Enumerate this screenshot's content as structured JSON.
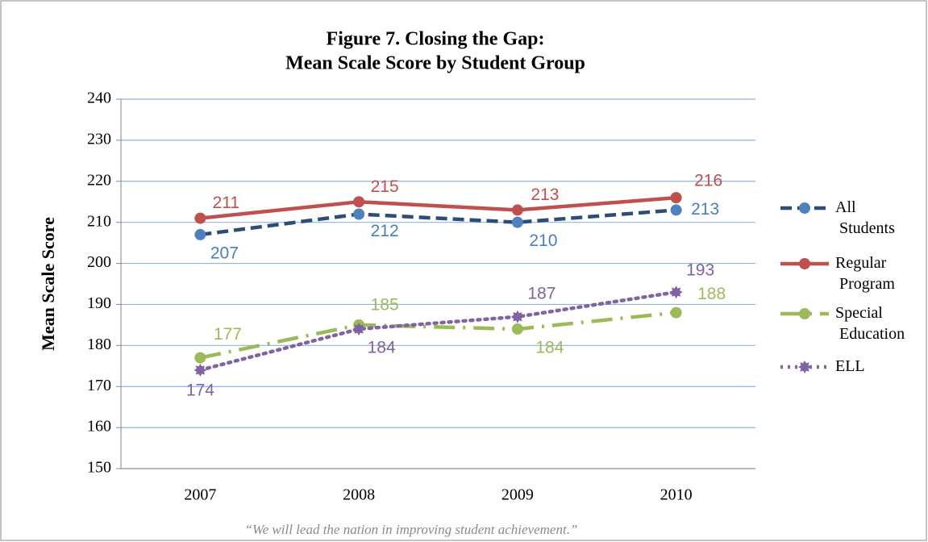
{
  "chart_data": {
    "type": "line",
    "title": [
      "Figure 7.  Closing the Gap:",
      "Mean Scale Score by Student Group"
    ],
    "y_label": "Mean Scale Score",
    "footer": "“We will lead the nation in improving student achievement.”",
    "categories": [
      "2007",
      "2008",
      "2009",
      "2010"
    ],
    "ylim": [
      150,
      240
    ],
    "yticks": [
      150,
      160,
      170,
      180,
      190,
      200,
      210,
      220,
      230,
      240
    ],
    "grid": true,
    "legend": "right",
    "series": [
      {
        "name": "All Students",
        "color": "#2c4d75",
        "marker_color": "#4f81bd",
        "label_color": "#4a7ebb",
        "dash": "dashed",
        "values": [
          207,
          212,
          210,
          213
        ]
      },
      {
        "name": "Regular Program",
        "color": "#c0504d",
        "marker_color": "#c0504d",
        "label_color": "#c0504d",
        "dash": "solid",
        "values": [
          211,
          215,
          213,
          216
        ]
      },
      {
        "name": "Special Education",
        "color": "#9bbb59",
        "marker_color": "#9bbb59",
        "label_color": "#9bbb59",
        "dash": "dashdot",
        "values": [
          177,
          185,
          184,
          188
        ]
      },
      {
        "name": "ELL",
        "color": "#8064a2",
        "marker_color": "#8064a2",
        "label_color": "#8064a2",
        "dash": "dotted",
        "values": [
          174,
          184,
          187,
          193
        ]
      }
    ]
  }
}
